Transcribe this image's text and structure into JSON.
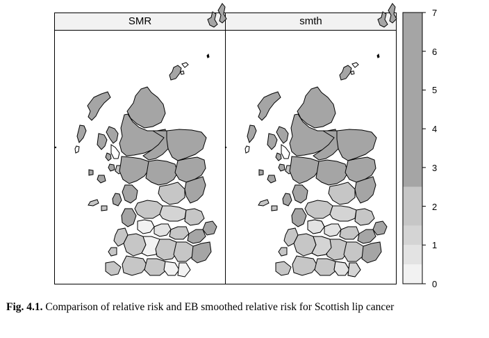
{
  "panels": [
    {
      "title": "SMR"
    },
    {
      "title": "smth"
    }
  ],
  "colorkey": {
    "ticks": [
      "0",
      "1",
      "2",
      "3",
      "4",
      "5",
      "6",
      "7"
    ],
    "bands": [
      {
        "from": 0,
        "to": 0.5,
        "color": "#f2f2f2"
      },
      {
        "from": 0.5,
        "to": 1.0,
        "color": "#e3e3e3"
      },
      {
        "from": 1.0,
        "to": 1.5,
        "color": "#d4d4d4"
      },
      {
        "from": 1.5,
        "to": 2.5,
        "color": "#c6c6c6"
      },
      {
        "from": 2.5,
        "to": 7.0,
        "color": "#a5a5a5"
      }
    ]
  },
  "caption": {
    "label": "Fig. 4.1.",
    "text": "Comparison of relative risk and EB smoothed relative risk for Scottish lip cancer"
  }
}
